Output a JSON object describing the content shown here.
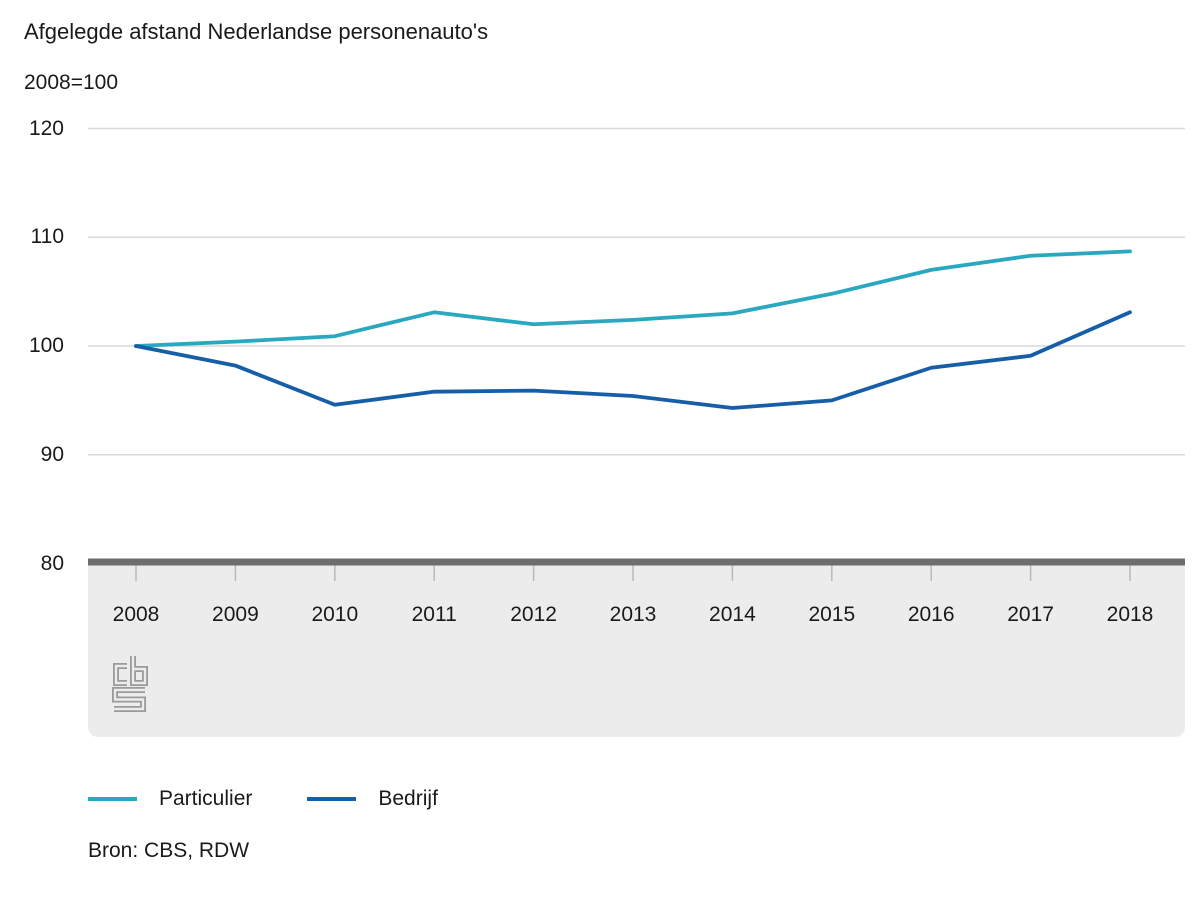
{
  "chart_data": {
    "type": "line",
    "title": "Afgelegde afstand Nederlandse personenauto's",
    "ylabel": "2008=100",
    "x": [
      2008,
      2009,
      2010,
      2011,
      2012,
      2013,
      2014,
      2015,
      2016,
      2017,
      2018
    ],
    "series": [
      {
        "name": "Particulier",
        "color": "#29a8c0",
        "values": [
          100,
          100.4,
          100.9,
          103.1,
          102,
          102.4,
          103,
          104.8,
          107,
          108.3,
          108.7
        ]
      },
      {
        "name": "Bedrijf",
        "color": "#175ea9",
        "values": [
          100,
          98.2,
          94.6,
          95.8,
          95.9,
          95.4,
          94.3,
          95,
          98,
          99.1,
          103.1
        ]
      }
    ],
    "ylim": [
      80,
      120
    ],
    "yticks": [
      120,
      110,
      100,
      90,
      80
    ],
    "grid": true,
    "legend_position": "bottom-left"
  },
  "source": {
    "label": "Bron: CBS, RDW"
  }
}
